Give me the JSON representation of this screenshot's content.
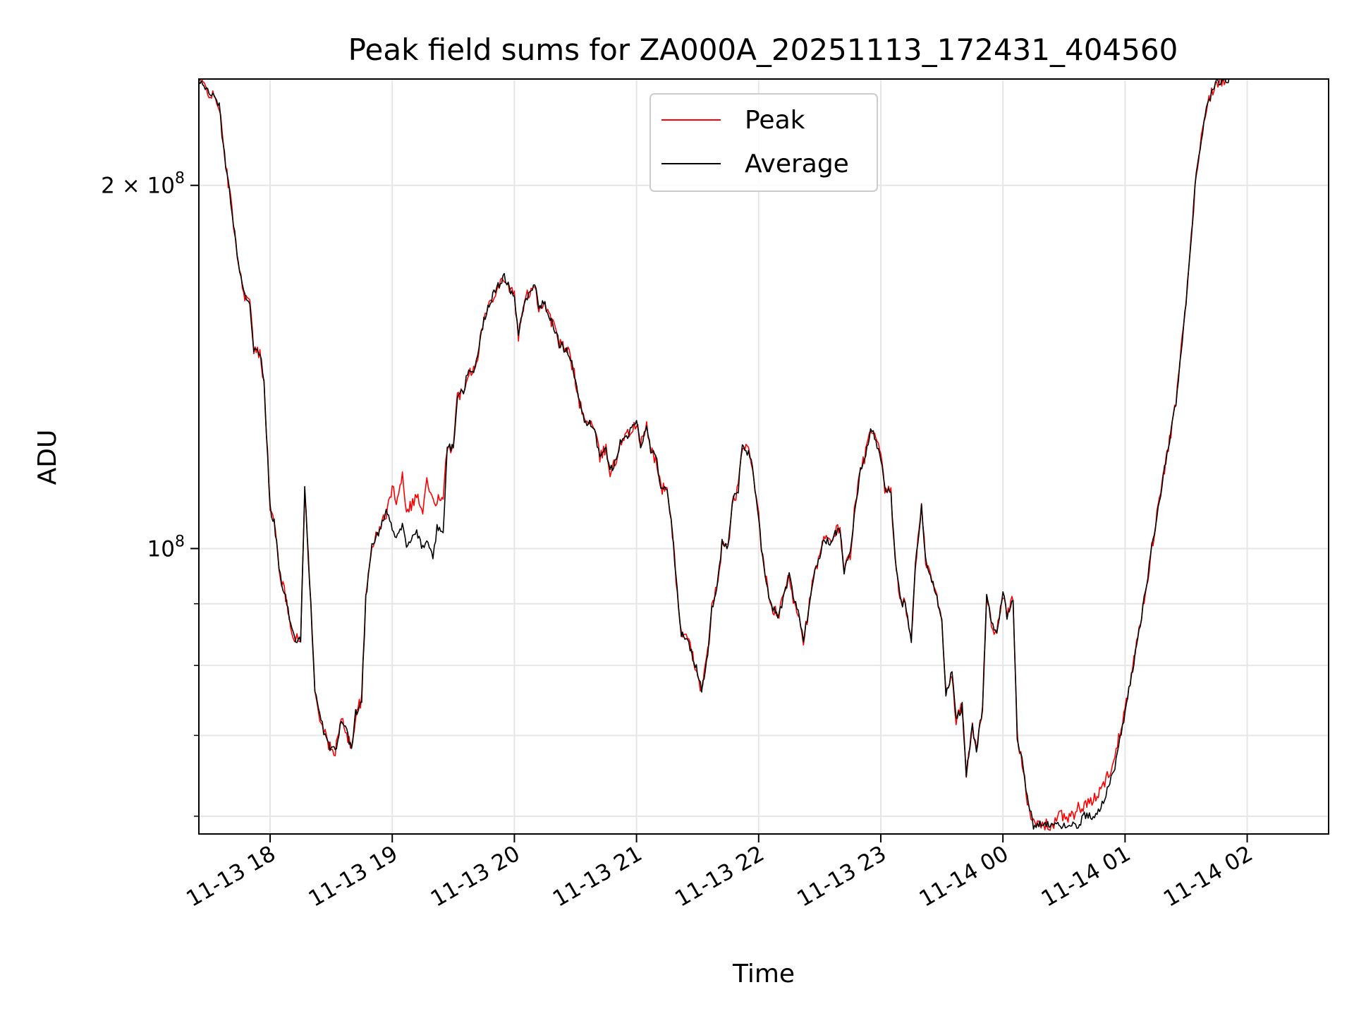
{
  "chart_data": {
    "type": "line",
    "title": "Peak field sums for ZA000A_20251113_172431_404560",
    "xlabel": "Time",
    "ylabel": "ADU",
    "y_scale": "log",
    "grid": true,
    "legend_position": "top-center",
    "x_tick_labels": [
      "11-13 18",
      "11-13 19",
      "11-13 20",
      "11-13 21",
      "11-13 22",
      "11-13 23",
      "11-14 00",
      "11-14 01",
      "11-14 02"
    ],
    "y_ticks_major": [
      {
        "value": 100000000,
        "base": "10",
        "exp": "8"
      },
      {
        "value": 200000000,
        "base": "2 × 10",
        "exp": "8"
      }
    ],
    "y_ticks_minor": [
      60000000,
      70000000,
      80000000,
      90000000,
      300000000
    ],
    "xlim": [
      "2025-11-13 17:25",
      "2025-11-14 02:40"
    ],
    "ylim": [
      58000000,
      245000000
    ],
    "x_time": [
      "17:25",
      "17:35",
      "17:37",
      "17:40",
      "17:42",
      "17:45",
      "17:47",
      "17:50",
      "17:52",
      "17:55",
      "17:57",
      "18:00",
      "18:02",
      "18:05",
      "18:07",
      "18:10",
      "18:12",
      "18:15",
      "18:17",
      "18:20",
      "18:22",
      "18:25",
      "18:27",
      "18:30",
      "18:32",
      "18:35",
      "18:37",
      "18:40",
      "18:42",
      "18:45",
      "18:47",
      "18:50",
      "18:52",
      "18:55",
      "18:57",
      "19:00",
      "19:02",
      "19:05",
      "19:07",
      "19:10",
      "19:12",
      "19:15",
      "19:17",
      "19:20",
      "19:22",
      "19:25",
      "19:27",
      "19:30",
      "19:32",
      "19:35",
      "19:37",
      "19:40",
      "19:42",
      "19:45",
      "19:47",
      "19:50",
      "19:52",
      "19:55",
      "19:57",
      "20:00",
      "20:02",
      "20:05",
      "20:07",
      "20:10",
      "20:12",
      "20:15",
      "20:17",
      "20:20",
      "20:22",
      "20:25",
      "20:27",
      "20:30",
      "20:32",
      "20:35",
      "20:37",
      "20:40",
      "20:42",
      "20:45",
      "20:47",
      "20:50",
      "20:52",
      "20:55",
      "20:57",
      "21:00",
      "21:02",
      "21:05",
      "21:07",
      "21:10",
      "21:12",
      "21:15",
      "21:17",
      "21:20",
      "21:22",
      "21:25",
      "21:27",
      "21:30",
      "21:32",
      "21:35",
      "21:37",
      "21:40",
      "21:42",
      "21:45",
      "21:47",
      "21:50",
      "21:52",
      "21:55",
      "21:57",
      "22:00",
      "22:02",
      "22:05",
      "22:07",
      "22:10",
      "22:12",
      "22:15",
      "22:17",
      "22:20",
      "22:22",
      "22:25",
      "22:27",
      "22:30",
      "22:32",
      "22:35",
      "22:37",
      "22:40",
      "22:42",
      "22:45",
      "22:47",
      "22:50",
      "22:52",
      "22:55",
      "22:57",
      "23:00",
      "23:02",
      "23:05",
      "23:07",
      "23:10",
      "23:12",
      "23:15",
      "23:17",
      "23:20",
      "23:22",
      "23:25",
      "23:27",
      "23:30",
      "23:32",
      "23:35",
      "23:37",
      "23:40",
      "23:42",
      "23:45",
      "23:47",
      "23:50",
      "23:52",
      "23:55",
      "23:57",
      "00:00",
      "00:02",
      "00:05",
      "00:07",
      "00:10",
      "00:12",
      "00:15",
      "00:17",
      "00:20",
      "00:22",
      "00:25",
      "00:27",
      "00:30",
      "00:32",
      "00:35",
      "00:37",
      "00:40",
      "00:45",
      "00:50",
      "00:55",
      "01:00",
      "01:05",
      "01:10",
      "01:15",
      "01:20",
      "01:25",
      "01:30",
      "01:35",
      "01:40",
      "01:45",
      "01:50",
      "01:52",
      "01:55",
      "01:57",
      "02:00",
      "02:02",
      "02:05",
      "02:07",
      "02:10",
      "02:12",
      "02:15",
      "02:17",
      "02:20",
      "02:25",
      "02:30",
      "02:35",
      "02:40"
    ],
    "series": [
      {
        "name": "Peak",
        "color": "#ff0000",
        "values": [
          245,
          233,
          215,
          198,
          186,
          170,
          163,
          160,
          146,
          145,
          138,
          108,
          105,
          95,
          92,
          87,
          84,
          84,
          112,
          90,
          76,
          72,
          70,
          68,
          68,
          72,
          71,
          68,
          73,
          75,
          91,
          101,
          102,
          105,
          107,
          112,
          110,
          115,
          108,
          109,
          111,
          107,
          114,
          109,
          110,
          109,
          122,
          121,
          134,
          135,
          140,
          141,
          145,
          155,
          158,
          163,
          165,
          168,
          165,
          162,
          150,
          160,
          163,
          166,
          158,
          160,
          156,
          152,
          148,
          146,
          145,
          138,
          132,
          127,
          128,
          124,
          119,
          121,
          116,
          118,
          123,
          124,
          125,
          127,
          122,
          126,
          121,
          118,
          112,
          112,
          106,
          92,
          85,
          84,
          82,
          79,
          76,
          82,
          89,
          94,
          101,
          100,
          109,
          112,
          122,
          120,
          117,
          106,
          98,
          91,
          89,
          88,
          91,
          95,
          91,
          88,
          84,
          90,
          95,
          98,
          102,
          101,
          103,
          104,
          96,
          99,
          107,
          116,
          119,
          125,
          124,
          119,
          112,
          111,
          98,
          90,
          90,
          84,
          97,
          108,
          98,
          94,
          92,
          87,
          76,
          79,
          72,
          74,
          65,
          71,
          68,
          74,
          91,
          86,
          85,
          92,
          88,
          91,
          70,
          66,
          62,
          59,
          59,
          59,
          59,
          59,
          60,
          60,
          60,
          60,
          61,
          61,
          62,
          64,
          67,
          74,
          82,
          92,
          105,
          118,
          132,
          160,
          205,
          233,
          244,
          245,
          245
        ],
        "noise": 0.012
      },
      {
        "name": "Average",
        "color": "#000000",
        "values": [
          245,
          233,
          215,
          198,
          186,
          170,
          163,
          160,
          146,
          145,
          138,
          108,
          105,
          95,
          92,
          87,
          84,
          84,
          112,
          90,
          76,
          72,
          70,
          68,
          68,
          72,
          71,
          68,
          73,
          75,
          91,
          101,
          102,
          105,
          107,
          104,
          102,
          105,
          101,
          102,
          103,
          100,
          101,
          98,
          104,
          103,
          122,
          121,
          134,
          135,
          140,
          141,
          145,
          155,
          158,
          163,
          165,
          168,
          165,
          162,
          150,
          160,
          163,
          166,
          158,
          160,
          156,
          152,
          148,
          146,
          145,
          138,
          132,
          127,
          128,
          124,
          119,
          121,
          116,
          118,
          123,
          124,
          125,
          127,
          122,
          126,
          121,
          118,
          112,
          112,
          106,
          92,
          85,
          84,
          82,
          79,
          76,
          82,
          89,
          94,
          101,
          100,
          109,
          112,
          122,
          120,
          117,
          106,
          98,
          91,
          89,
          88,
          91,
          95,
          91,
          88,
          84,
          90,
          95,
          98,
          102,
          101,
          103,
          104,
          96,
          99,
          107,
          116,
          119,
          125,
          124,
          119,
          112,
          111,
          98,
          90,
          90,
          84,
          97,
          108,
          98,
          94,
          92,
          87,
          76,
          79,
          72,
          74,
          65,
          71,
          68,
          74,
          91,
          86,
          85,
          92,
          88,
          91,
          70,
          66,
          62,
          59,
          59,
          59,
          59,
          59,
          59,
          59,
          59,
          59,
          59,
          60,
          60,
          62,
          66,
          73,
          82,
          92,
          105,
          118,
          132,
          160,
          205,
          233,
          244,
          245,
          245
        ],
        "noise": 0.008
      }
    ],
    "value_unit_multiplier": 1000000
  }
}
